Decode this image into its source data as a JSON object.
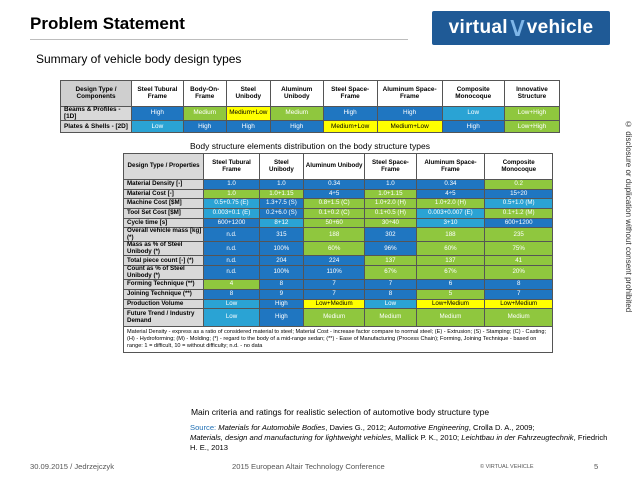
{
  "title": "Problem Statement",
  "subtitle": "Summary of vehicle body design types",
  "logo_text": "virtual",
  "logo_text2": "vehicle",
  "vertical_note": "© disclosure or duplication without consent prohibited",
  "colors": {
    "high": "#1f76c1",
    "medium": "#8fc73e",
    "medium_low": "#ffff00",
    "low": "#2aa3d4",
    "logo": "#1f5a96"
  },
  "table1": {
    "corner": "Design Type / Components",
    "headers": [
      "Steel Tubural Frame",
      "Body-On-Frame",
      "Steel Unibody",
      "Aluminum Unibody",
      "Steel Space-Frame",
      "Aluminum Space-Frame",
      "Composite Monocoque",
      "Innovative Structure"
    ],
    "rows": [
      {
        "label": "Beams & Profiles - [1D]",
        "cells": [
          {
            "v": "High",
            "c": "high"
          },
          {
            "v": "Medium",
            "c": "med"
          },
          {
            "v": "Medium+Low",
            "c": "ml"
          },
          {
            "v": "Medium",
            "c": "med"
          },
          {
            "v": "High",
            "c": "high"
          },
          {
            "v": "High",
            "c": "high"
          },
          {
            "v": "Low",
            "c": "low"
          },
          {
            "v": "Low+High",
            "c": "lh"
          }
        ]
      },
      {
        "label": "Plates & Shells - [2D]",
        "cells": [
          {
            "v": "Low",
            "c": "low"
          },
          {
            "v": "High",
            "c": "high"
          },
          {
            "v": "High",
            "c": "high"
          },
          {
            "v": "High",
            "c": "high"
          },
          {
            "v": "Medium+Low",
            "c": "ml"
          },
          {
            "v": "Medium+Low",
            "c": "ml"
          },
          {
            "v": "High",
            "c": "high"
          },
          {
            "v": "Low+High",
            "c": "lh"
          }
        ]
      }
    ]
  },
  "caption1": "Body structure elements distribution on the body structure types",
  "table2": {
    "corner": "Design Type / Properties",
    "headers": [
      "Steel Tubural Frame",
      "Steel Unibody",
      "Aluminum Unibody",
      "Steel Space-Frame",
      "Aluminum Space-Frame",
      "Composite Monocoque"
    ],
    "rows": [
      {
        "label": "Material Density [-]",
        "cells": [
          {
            "v": "1.0",
            "c": "high"
          },
          {
            "v": "1.0",
            "c": "high"
          },
          {
            "v": "0.34",
            "c": "high"
          },
          {
            "v": "1.0",
            "c": "high"
          },
          {
            "v": "0.34",
            "c": "high"
          },
          {
            "v": "0.2",
            "c": "med"
          }
        ]
      },
      {
        "label": "Material Cost [-]",
        "cells": [
          {
            "v": "1.0",
            "c": "med"
          },
          {
            "v": "1.0+1.15",
            "c": "med"
          },
          {
            "v": "4÷5",
            "c": "high"
          },
          {
            "v": "1.0+1.15",
            "c": "med"
          },
          {
            "v": "4÷5",
            "c": "high"
          },
          {
            "v": "15÷20",
            "c": "high"
          }
        ]
      },
      {
        "label": "Machine Cost [$M]",
        "cells": [
          {
            "v": "0.5+0.75 (E)",
            "c": "low"
          },
          {
            "v": "1.3+7.5 (S)",
            "c": "high"
          },
          {
            "v": "0.8+1.5 (C)",
            "c": "med"
          },
          {
            "v": "1.0+2.0 (H)",
            "c": "med"
          },
          {
            "v": "1.0+2.0 (H)",
            "c": "med"
          },
          {
            "v": "0.5+1.0 (M)",
            "c": "low"
          }
        ]
      },
      {
        "label": "Tool Set Cost [$M]",
        "cells": [
          {
            "v": "0.003+0.1 (E)",
            "c": "low"
          },
          {
            "v": "0.2+6.0 (S)",
            "c": "high"
          },
          {
            "v": "0.1+0.2 (C)",
            "c": "med"
          },
          {
            "v": "0.1+0.5 (H)",
            "c": "med"
          },
          {
            "v": "0.003+0.007 (E)",
            "c": "low"
          },
          {
            "v": "0.1+1.2 (M)",
            "c": "med"
          }
        ]
      },
      {
        "label": "Cycle time [s]",
        "cells": [
          {
            "v": "600+1200",
            "c": "high"
          },
          {
            "v": "8+12",
            "c": "low"
          },
          {
            "v": "50+60",
            "c": "med"
          },
          {
            "v": "30÷40",
            "c": "med"
          },
          {
            "v": "3+10",
            "c": "low"
          },
          {
            "v": "600+1200",
            "c": "high"
          }
        ]
      },
      {
        "label": "Overall vehicle mass [kg] (*)",
        "cells": [
          {
            "v": "n.d.",
            "c": "high"
          },
          {
            "v": "315",
            "c": "high"
          },
          {
            "v": "188",
            "c": "med"
          },
          {
            "v": "302",
            "c": "high"
          },
          {
            "v": "188",
            "c": "med"
          },
          {
            "v": "235",
            "c": "med"
          }
        ]
      },
      {
        "label": "Mass as % of Steel Unibody (*)",
        "cells": [
          {
            "v": "n.d.",
            "c": "high"
          },
          {
            "v": "100%",
            "c": "high"
          },
          {
            "v": "60%",
            "c": "med"
          },
          {
            "v": "96%",
            "c": "high"
          },
          {
            "v": "60%",
            "c": "med"
          },
          {
            "v": "75%",
            "c": "med"
          }
        ]
      },
      {
        "label": "Total piece count [-] (*)",
        "cells": [
          {
            "v": "n.d.",
            "c": "high"
          },
          {
            "v": "204",
            "c": "high"
          },
          {
            "v": "224",
            "c": "high"
          },
          {
            "v": "137",
            "c": "med"
          },
          {
            "v": "137",
            "c": "med"
          },
          {
            "v": "41",
            "c": "med"
          }
        ]
      },
      {
        "label": "Count as % of Steel Unibody (*)",
        "cells": [
          {
            "v": "n.d.",
            "c": "high"
          },
          {
            "v": "100%",
            "c": "high"
          },
          {
            "v": "110%",
            "c": "high"
          },
          {
            "v": "67%",
            "c": "med"
          },
          {
            "v": "67%",
            "c": "med"
          },
          {
            "v": "20%",
            "c": "med"
          }
        ]
      },
      {
        "label": "Forming Technique (**)",
        "cells": [
          {
            "v": "4",
            "c": "med"
          },
          {
            "v": "8",
            "c": "high"
          },
          {
            "v": "7",
            "c": "high"
          },
          {
            "v": "7",
            "c": "high"
          },
          {
            "v": "6",
            "c": "high"
          },
          {
            "v": "8",
            "c": "high"
          }
        ]
      },
      {
        "label": "Joining Technique (**)",
        "cells": [
          {
            "v": "8",
            "c": "high"
          },
          {
            "v": "9",
            "c": "high"
          },
          {
            "v": "7",
            "c": "high"
          },
          {
            "v": "8",
            "c": "high"
          },
          {
            "v": "5",
            "c": "med"
          },
          {
            "v": "7",
            "c": "high"
          }
        ]
      },
      {
        "label": "Production Volume",
        "cells": [
          {
            "v": "Low",
            "c": "low"
          },
          {
            "v": "High",
            "c": "high"
          },
          {
            "v": "Low+Medium",
            "c": "ml"
          },
          {
            "v": "Low",
            "c": "low"
          },
          {
            "v": "Low+Medium",
            "c": "ml"
          },
          {
            "v": "Low+Medium",
            "c": "ml"
          }
        ]
      },
      {
        "label": "Future Trend / Industry Demand",
        "tall": true,
        "cells": [
          {
            "v": "Low",
            "c": "low"
          },
          {
            "v": "High",
            "c": "high"
          },
          {
            "v": "Medium",
            "c": "med"
          },
          {
            "v": "Medium",
            "c": "med"
          },
          {
            "v": "Medium",
            "c": "med"
          },
          {
            "v": "Medium",
            "c": "med"
          }
        ]
      }
    ],
    "notes": "Material Density - express as a ratio of considered material to steel; Material Cost - increase factor compare to normal steel; (E) - Extrusion; (S) - Stamping; (C) - Casting; (H) - Hydroforming; (M) - Molding; (*) - regard to the body of a mid-range sedan; (**) - Ease of Manufacturing (Process Chain); Forming, Joining Technique - based on range: 1 = difficult, 10 = without difficulty; n.d. - no data"
  },
  "caption2": "Main criteria and ratings for realistic selection of automotive body structure type",
  "source": {
    "label": "Source:",
    "ref1_title": "Materials for Automobile Bodies",
    "ref1_rest": ", Davies G., 2012;",
    "ref2_title": "Automotive Engineering",
    "ref2_rest": ", Crolla D. A., 2009;",
    "ref3_title": "Materials, design and manufacturing for lightweight vehicles",
    "ref3_rest": ", Mallick P. K., 2010;",
    "ref4_title": "Leichtbau in der Fahrzeugtechnik",
    "ref4_rest": ", Friedrich H. E., 2013"
  },
  "footer": {
    "left": "30.09.2015 / Jedrzejczyk",
    "center": "2015 European Altair Technology Conference",
    "right": "© VIRTUAL VEHICLE",
    "page": "5"
  }
}
